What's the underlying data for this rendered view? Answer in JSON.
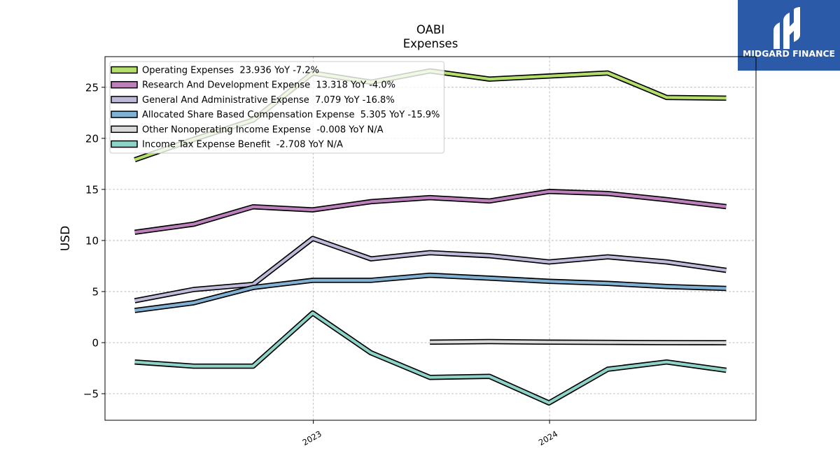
{
  "logo": {
    "text": "MIDGARD FINANCE",
    "background": "#2b5aa8",
    "icon": "midgard-finance-mark-icon"
  },
  "chart_data": {
    "type": "line",
    "title": "OABI",
    "subtitle": "Expenses",
    "ylabel": "USD",
    "xlim": [
      "2022-02-13",
      "2024-11-15"
    ],
    "ylim": [
      -7.6,
      28.0
    ],
    "grid": true,
    "legend_position": "top-left",
    "xticks": [
      {
        "date": "2023-01-01",
        "label": "2023"
      },
      {
        "date": "2024-01-01",
        "label": "2024"
      }
    ],
    "yticks": [
      {
        "value": -5,
        "label": "−5"
      },
      {
        "value": 0,
        "label": "0"
      },
      {
        "value": 5,
        "label": "5"
      },
      {
        "value": 10,
        "label": "10"
      },
      {
        "value": 15,
        "label": "15"
      },
      {
        "value": 20,
        "label": "20"
      },
      {
        "value": 25,
        "label": "25"
      }
    ],
    "x": [
      "2022-03-31",
      "2022-06-30",
      "2022-09-30",
      "2022-12-31",
      "2023-03-31",
      "2023-06-30",
      "2023-09-30",
      "2023-12-31",
      "2024-03-31",
      "2024-06-30",
      "2024-09-30"
    ],
    "series": [
      {
        "name": "Operating Expenses",
        "latest": "23.936",
        "yoy": "YoY -7.2%",
        "color": "#b3de69",
        "values": [
          17.9,
          19.9,
          21.8,
          26.4,
          25.5,
          26.6,
          25.8,
          26.1,
          26.4,
          24.0,
          23.936
        ]
      },
      {
        "name": "Research And Development Expense",
        "latest": "13.318",
        "yoy": "YoY -4.0%",
        "color": "#bc80bd",
        "values": [
          10.8,
          11.6,
          13.3,
          13.0,
          13.8,
          14.2,
          13.87,
          14.8,
          14.6,
          14.0,
          13.318
        ]
      },
      {
        "name": "General And Administrative Expense",
        "latest": "7.079",
        "yoy": "YoY -16.8%",
        "color": "#bebada",
        "values": [
          4.1,
          5.2,
          5.7,
          10.2,
          8.2,
          8.8,
          8.51,
          7.9,
          8.4,
          7.9,
          7.079
        ]
      },
      {
        "name": "Allocated Share Based Compensation Expense",
        "latest": "5.305",
        "yoy": "YoY -15.9%",
        "color": "#80b1d3",
        "values": [
          3.15,
          3.9,
          5.4,
          6.1,
          6.1,
          6.6,
          6.31,
          6.0,
          5.8,
          5.5,
          5.305
        ]
      },
      {
        "name": "Other Nonoperating Income Expense",
        "latest": "-0.008",
        "yoy": "YoY N/A",
        "color": "#d9d9d9",
        "values": [
          null,
          null,
          null,
          null,
          null,
          0.05,
          0.1,
          0.05,
          0.03,
          0.0,
          -0.008
        ]
      },
      {
        "name": "Income Tax Expense Benefit",
        "latest": "-2.708",
        "yoy": "YoY N/A",
        "color": "#8dd3c7",
        "values": [
          -1.9,
          -2.3,
          -2.3,
          2.9,
          -1.0,
          -3.4,
          -3.3,
          -5.9,
          -2.6,
          -1.9,
          -2.708
        ]
      }
    ]
  }
}
